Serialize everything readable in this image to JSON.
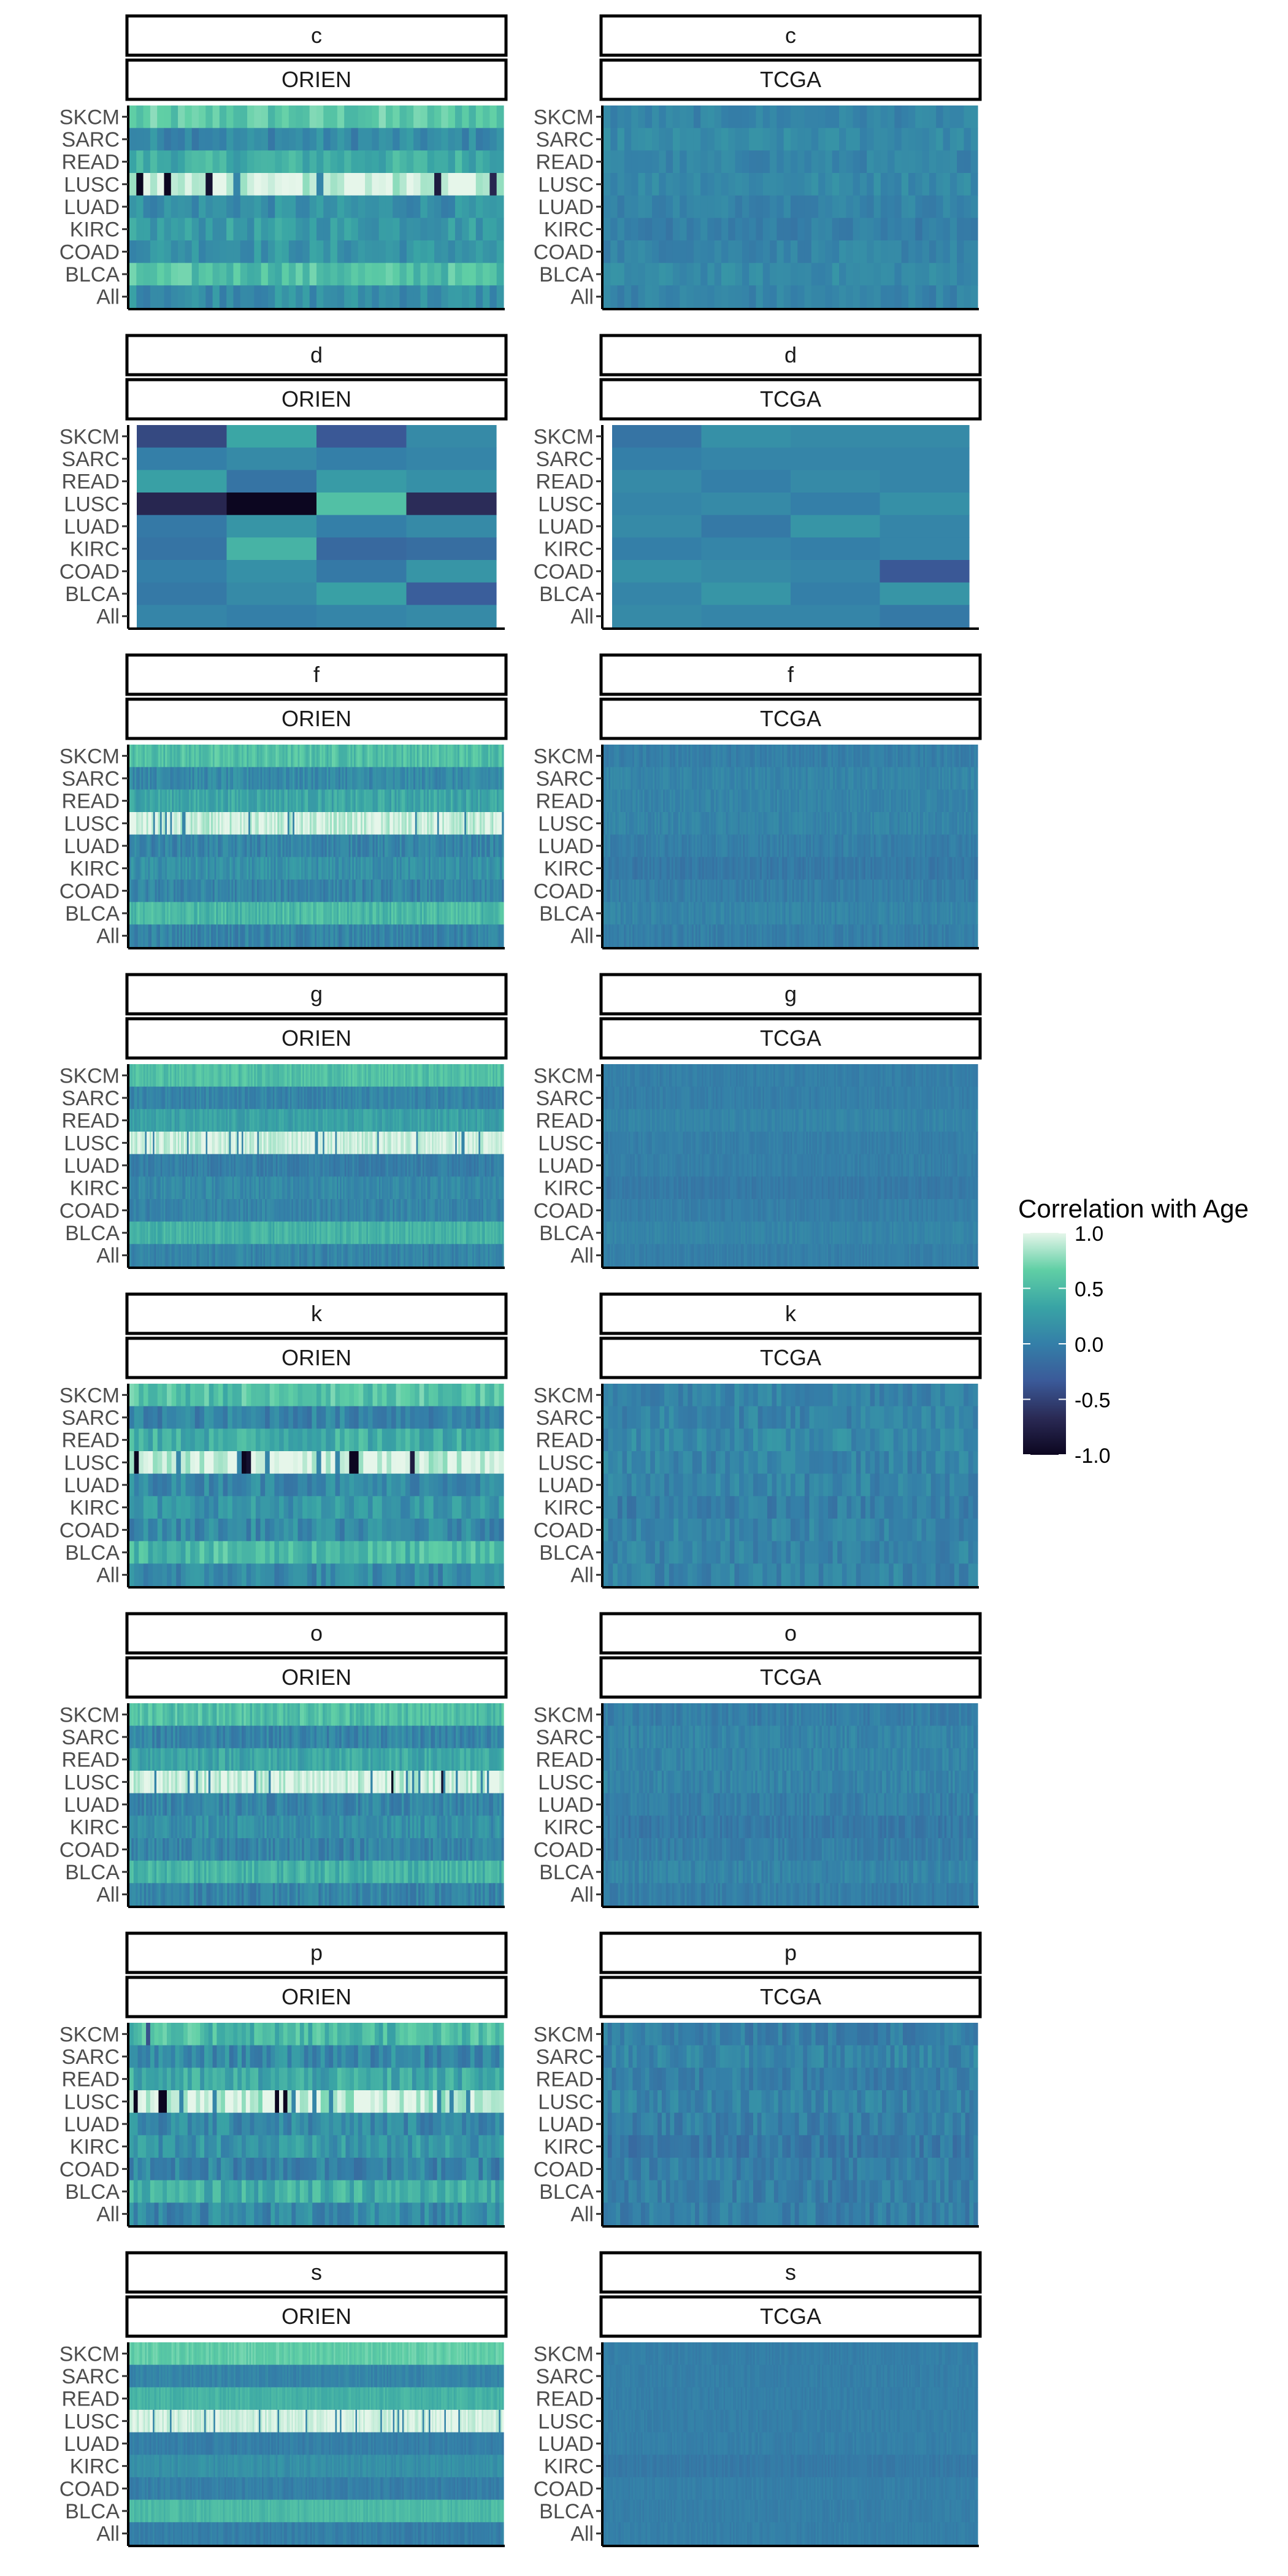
{
  "chart_data": {
    "type": "heatmap",
    "legend": {
      "title": "Correlation with Age",
      "position": "right",
      "range": [
        -1.0,
        1.0
      ],
      "ticks": [
        "1.0",
        "0.5",
        "0.0",
        "-0.5",
        "-1.0"
      ],
      "colors": [
        "#0c0620",
        "#2a2a55",
        "#3b5a99",
        "#347fa8",
        "#39a4a5",
        "#60cfa5",
        "#e6f6ea"
      ]
    },
    "rows": [
      "SKCM",
      "SARC",
      "READ",
      "LUSC",
      "LUAD",
      "KIRC",
      "COAD",
      "BLCA",
      "All"
    ],
    "datasets": [
      "ORIEN",
      "TCGA"
    ],
    "grid": false,
    "panels": [
      {
        "group": "c",
        "columns": {
          "ORIEN": 54,
          "TCGA": 54
        },
        "row_means": {
          "ORIEN": [
            0.6,
            0.1,
            0.4,
            0.95,
            0.15,
            0.25,
            0.2,
            0.55,
            0.15
          ],
          "TCGA": [
            0.05,
            0.1,
            0.05,
            0.1,
            0.05,
            0.0,
            0.05,
            0.1,
            0.05
          ]
        },
        "spread": {
          "ORIEN": 0.18,
          "TCGA": 0.1
        },
        "notable": {
          "ORIEN": [
            [
              3,
              1,
              -1.0
            ],
            [
              3,
              5,
              -1.0
            ],
            [
              3,
              11,
              -0.9
            ],
            [
              3,
              44,
              -0.8
            ],
            [
              3,
              52,
              -0.7
            ]
          ]
        }
      },
      {
        "group": "d",
        "columns": {
          "ORIEN": 4,
          "TCGA": 4
        },
        "values": {
          "ORIEN": [
            [
              -0.45,
              0.35,
              -0.35,
              0.1
            ],
            [
              0.0,
              0.1,
              0.0,
              0.05
            ],
            [
              0.3,
              -0.1,
              0.25,
              0.15
            ],
            [
              -0.7,
              -1.0,
              0.55,
              -0.65
            ],
            [
              -0.05,
              0.2,
              0.0,
              0.1
            ],
            [
              -0.1,
              0.45,
              -0.2,
              -0.15
            ],
            [
              0.0,
              0.15,
              -0.05,
              0.2
            ],
            [
              -0.05,
              0.1,
              0.3,
              -0.3
            ],
            [
              0.05,
              0.0,
              0.05,
              0.1
            ]
          ],
          "TCGA": [
            [
              -0.1,
              0.15,
              0.1,
              0.1
            ],
            [
              0.0,
              0.05,
              0.05,
              0.05
            ],
            [
              0.1,
              0.0,
              0.1,
              0.05
            ],
            [
              0.05,
              0.1,
              0.0,
              0.15
            ],
            [
              0.1,
              -0.05,
              0.2,
              0.05
            ],
            [
              0.0,
              0.05,
              0.0,
              0.05
            ],
            [
              0.15,
              0.1,
              0.05,
              -0.35
            ],
            [
              0.05,
              0.2,
              0.0,
              0.2
            ],
            [
              0.1,
              0.05,
              0.05,
              -0.05
            ]
          ]
        }
      },
      {
        "group": "f",
        "columns": {
          "ORIEN": 220,
          "TCGA": 220
        },
        "row_means": {
          "ORIEN": [
            0.55,
            0.1,
            0.35,
            0.95,
            0.05,
            0.15,
            0.05,
            0.5,
            0.05
          ],
          "TCGA": [
            0.0,
            0.05,
            0.05,
            0.05,
            0.0,
            -0.05,
            0.0,
            0.05,
            0.0
          ]
        },
        "spread": {
          "ORIEN": 0.15,
          "TCGA": 0.08
        }
      },
      {
        "group": "g",
        "columns": {
          "ORIEN": 240,
          "TCGA": 240
        },
        "row_means": {
          "ORIEN": [
            0.55,
            0.05,
            0.3,
            0.95,
            0.0,
            0.1,
            0.05,
            0.45,
            0.05
          ],
          "TCGA": [
            0.0,
            0.0,
            0.05,
            0.0,
            0.0,
            -0.05,
            0.0,
            0.05,
            0.0
          ]
        },
        "spread": {
          "ORIEN": 0.12,
          "TCGA": 0.06
        }
      },
      {
        "group": "k",
        "columns": {
          "ORIEN": 80,
          "TCGA": 80
        },
        "row_means": {
          "ORIEN": [
            0.55,
            0.05,
            0.4,
            0.95,
            0.1,
            0.2,
            0.1,
            0.5,
            0.1
          ],
          "TCGA": [
            0.05,
            0.05,
            0.1,
            0.05,
            0.05,
            0.0,
            0.05,
            0.05,
            0.05
          ]
        },
        "spread": {
          "ORIEN": 0.2,
          "TCGA": 0.14
        },
        "notable": {
          "ORIEN": [
            [
              3,
              1,
              -1.0
            ],
            [
              3,
              24,
              -1.0
            ],
            [
              3,
              25,
              -0.9
            ],
            [
              3,
              47,
              -1.0
            ],
            [
              3,
              48,
              -1.0
            ],
            [
              3,
              60,
              -0.8
            ]
          ]
        }
      },
      {
        "group": "o",
        "columns": {
          "ORIEN": 180,
          "TCGA": 180
        },
        "row_means": {
          "ORIEN": [
            0.55,
            0.05,
            0.35,
            0.95,
            0.05,
            0.15,
            0.05,
            0.45,
            0.05
          ],
          "TCGA": [
            0.0,
            0.05,
            0.05,
            0.05,
            0.0,
            -0.05,
            0.0,
            0.05,
            0.0
          ]
        },
        "spread": {
          "ORIEN": 0.16,
          "TCGA": 0.1
        },
        "notable": {
          "ORIEN": [
            [
              3,
              126,
              -1.0
            ],
            [
              3,
              150,
              -0.9
            ]
          ]
        }
      },
      {
        "group": "p",
        "columns": {
          "ORIEN": 90,
          "TCGA": 90
        },
        "row_means": {
          "ORIEN": [
            0.5,
            0.1,
            0.35,
            0.95,
            0.1,
            0.2,
            0.05,
            0.4,
            0.1
          ],
          "TCGA": [
            0.0,
            0.05,
            0.0,
            0.05,
            0.0,
            -0.05,
            0.0,
            0.0,
            0.0
          ]
        },
        "spread": {
          "ORIEN": 0.22,
          "TCGA": 0.14
        },
        "notable": {
          "ORIEN": [
            [
              3,
              1,
              -1.0
            ],
            [
              3,
              7,
              -1.0
            ],
            [
              3,
              8,
              -1.0
            ],
            [
              3,
              35,
              -1.0
            ],
            [
              3,
              37,
              -1.0
            ],
            [
              0,
              4,
              -0.4
            ]
          ]
        }
      },
      {
        "group": "s",
        "columns": {
          "ORIEN": 240,
          "TCGA": 240
        },
        "row_means": {
          "ORIEN": [
            0.65,
            0.05,
            0.45,
            0.95,
            0.0,
            0.15,
            0.0,
            0.5,
            0.0
          ],
          "TCGA": [
            0.0,
            0.0,
            0.0,
            0.0,
            0.0,
            -0.05,
            0.0,
            0.0,
            0.0
          ]
        },
        "spread": {
          "ORIEN": 0.08,
          "TCGA": 0.05
        }
      }
    ]
  }
}
